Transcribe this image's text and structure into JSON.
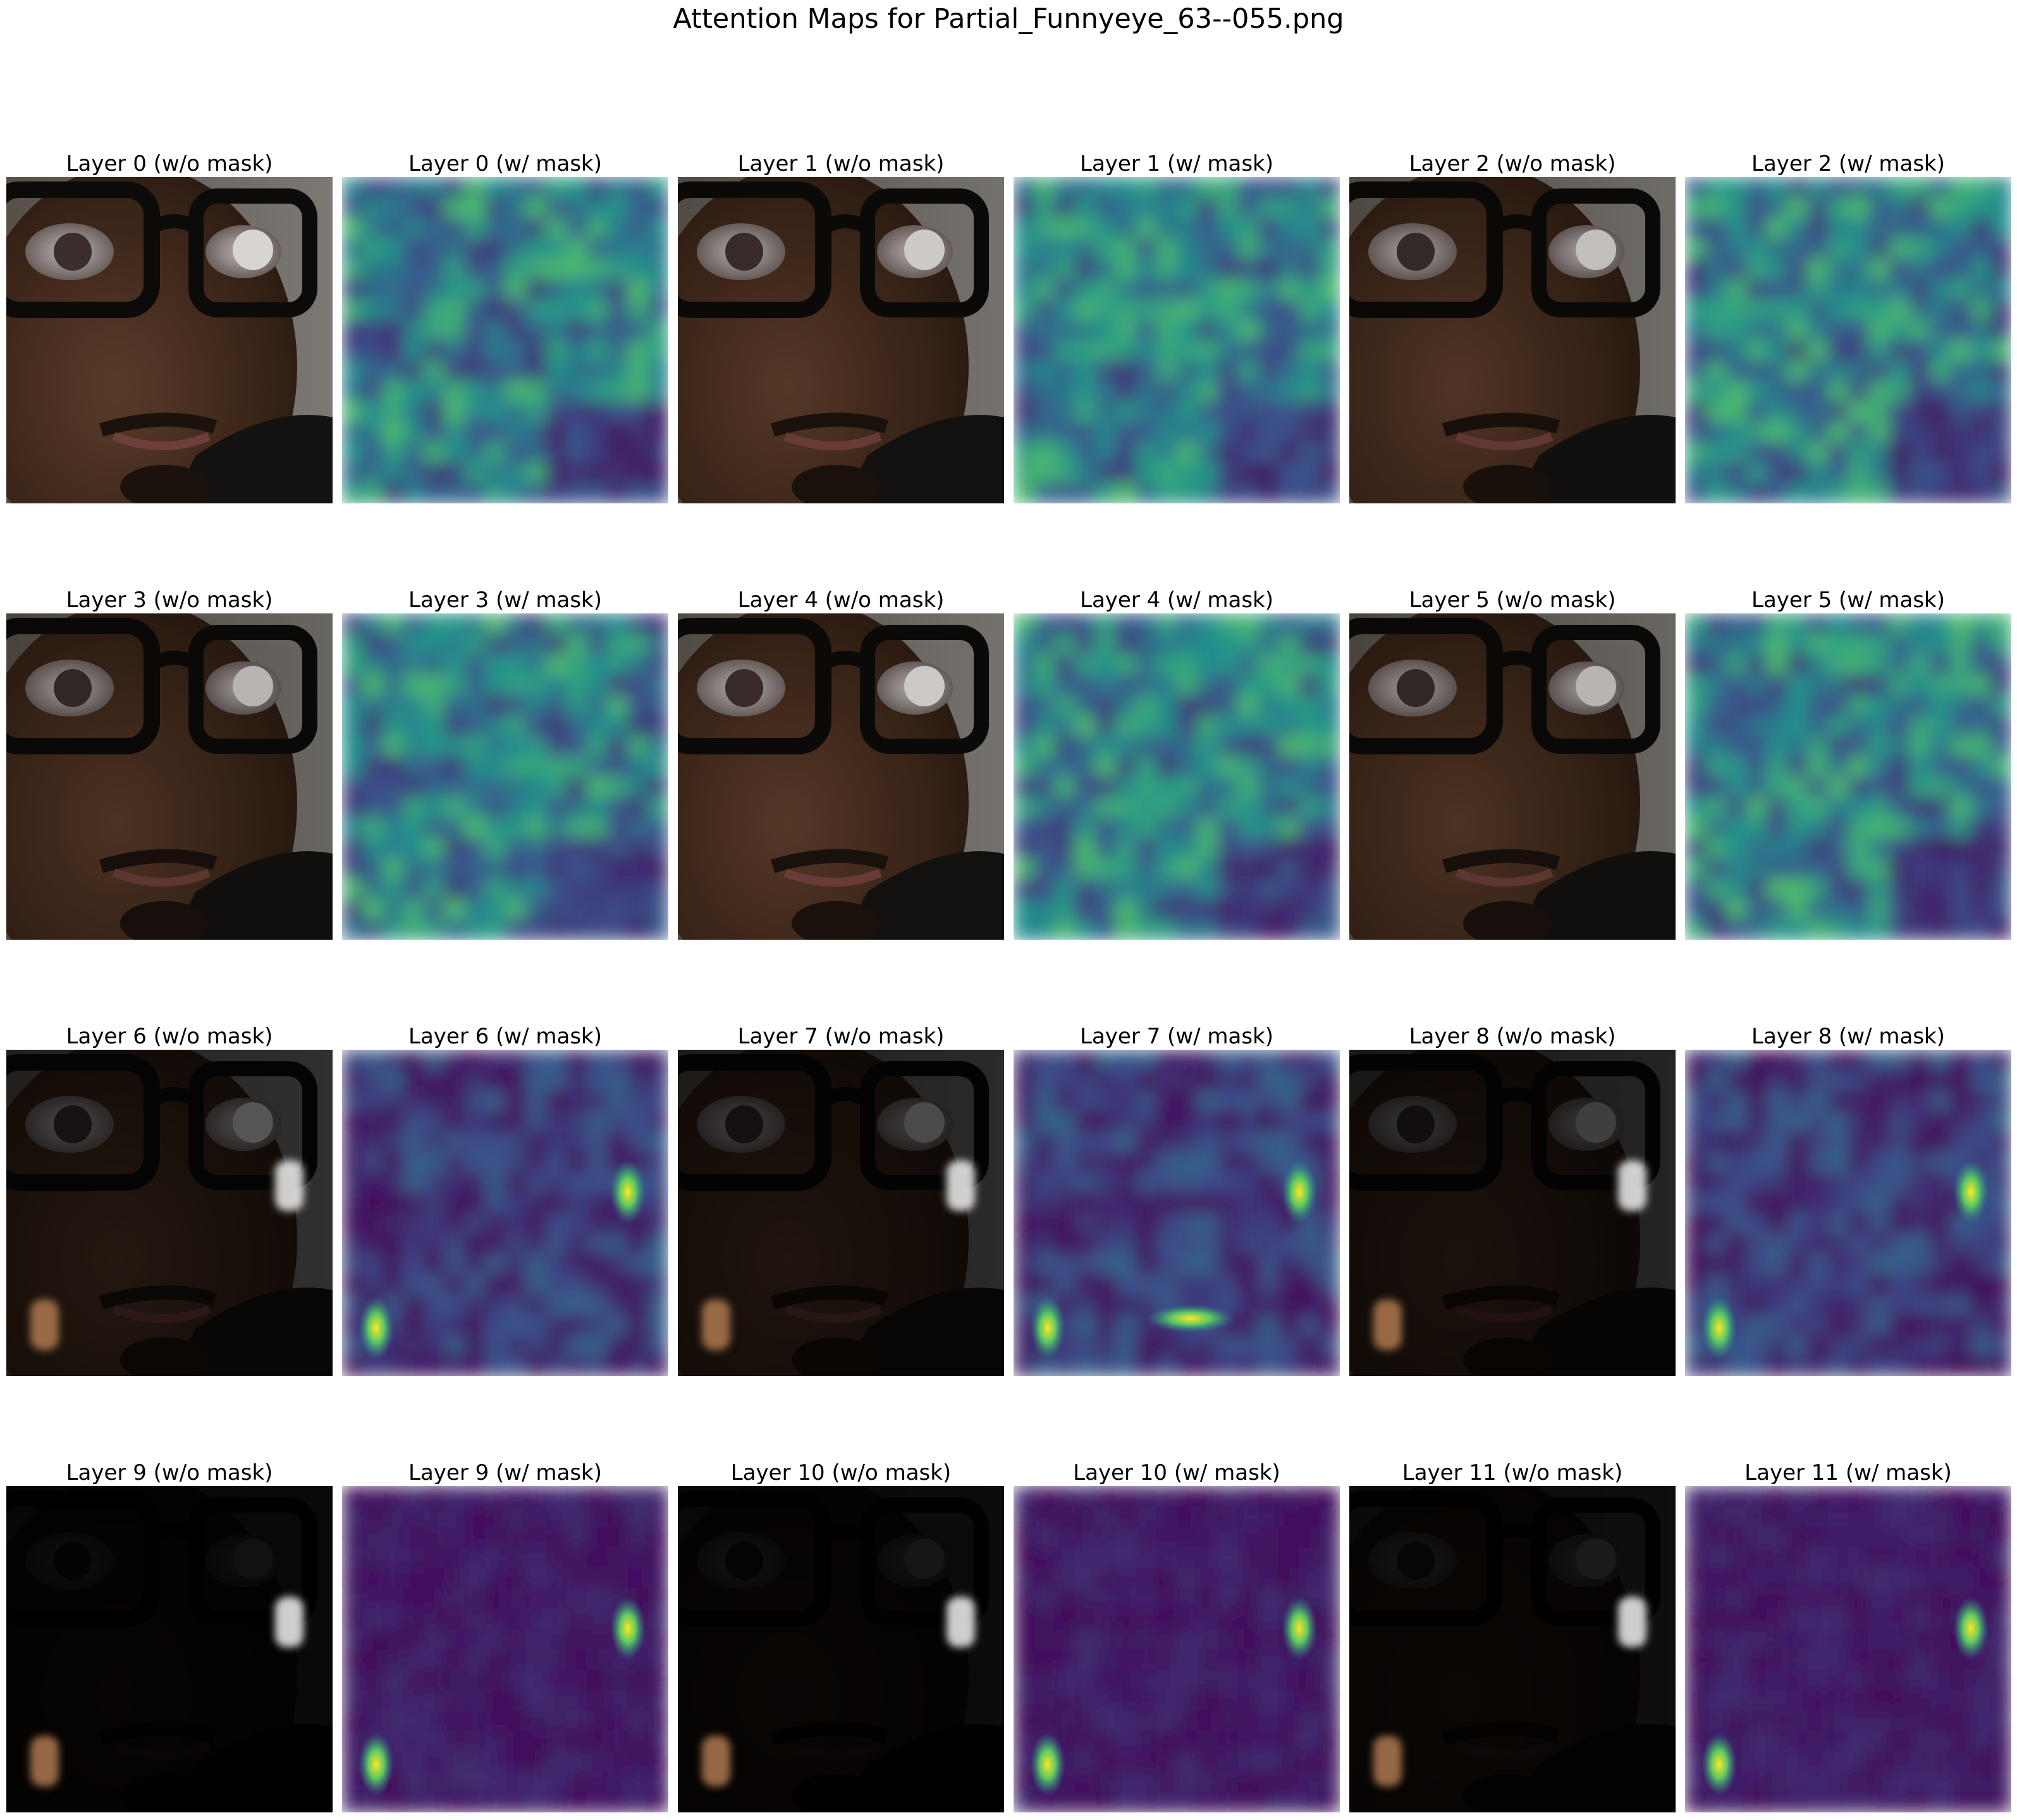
{
  "figure": {
    "title": "Attention Maps for Partial_Funnyeye_63--055.png"
  },
  "panels": [
    {
      "title": "Layer 0 (w/o mask)",
      "kind": "face",
      "layer": 0,
      "brightness": 1.0
    },
    {
      "title": "Layer 0 (w/ mask)",
      "kind": "attention",
      "layer": 0
    },
    {
      "title": "Layer 1 (w/o mask)",
      "kind": "face",
      "layer": 1,
      "brightness": 0.95
    },
    {
      "title": "Layer 1 (w/ mask)",
      "kind": "attention",
      "layer": 1
    },
    {
      "title": "Layer 2 (w/o mask)",
      "kind": "face",
      "layer": 2,
      "brightness": 0.9
    },
    {
      "title": "Layer 2 (w/ mask)",
      "kind": "attention",
      "layer": 2
    },
    {
      "title": "Layer 3 (w/o mask)",
      "kind": "face",
      "layer": 3,
      "brightness": 0.85
    },
    {
      "title": "Layer 3 (w/ mask)",
      "kind": "attention",
      "layer": 3
    },
    {
      "title": "Layer 4 (w/o mask)",
      "kind": "face",
      "layer": 4,
      "brightness": 0.95
    },
    {
      "title": "Layer 4 (w/ mask)",
      "kind": "attention",
      "layer": 4
    },
    {
      "title": "Layer 5 (w/o mask)",
      "kind": "face",
      "layer": 5,
      "brightness": 0.85
    },
    {
      "title": "Layer 5 (w/ mask)",
      "kind": "attention",
      "layer": 5
    },
    {
      "title": "Layer 6 (w/o mask)",
      "kind": "face",
      "layer": 6,
      "brightness": 0.4
    },
    {
      "title": "Layer 6 (w/ mask)",
      "kind": "attention",
      "layer": 6
    },
    {
      "title": "Layer 7 (w/o mask)",
      "kind": "face",
      "layer": 7,
      "brightness": 0.35
    },
    {
      "title": "Layer 7 (w/ mask)",
      "kind": "attention",
      "layer": 7
    },
    {
      "title": "Layer 8 (w/o mask)",
      "kind": "face",
      "layer": 8,
      "brightness": 0.3
    },
    {
      "title": "Layer 8 (w/ mask)",
      "kind": "attention",
      "layer": 8
    },
    {
      "title": "Layer 9 (w/o mask)",
      "kind": "face",
      "layer": 9,
      "brightness": 0.08
    },
    {
      "title": "Layer 9 (w/ mask)",
      "kind": "attention",
      "layer": 9
    },
    {
      "title": "Layer 10 (w/o mask)",
      "kind": "face",
      "layer": 10,
      "brightness": 0.1
    },
    {
      "title": "Layer 10 (w/ mask)",
      "kind": "attention",
      "layer": 10
    },
    {
      "title": "Layer 11 (w/o mask)",
      "kind": "face",
      "layer": 11,
      "brightness": 0.12
    },
    {
      "title": "Layer 11 (w/ mask)",
      "kind": "attention",
      "layer": 11
    }
  ],
  "colormap": "viridis"
}
